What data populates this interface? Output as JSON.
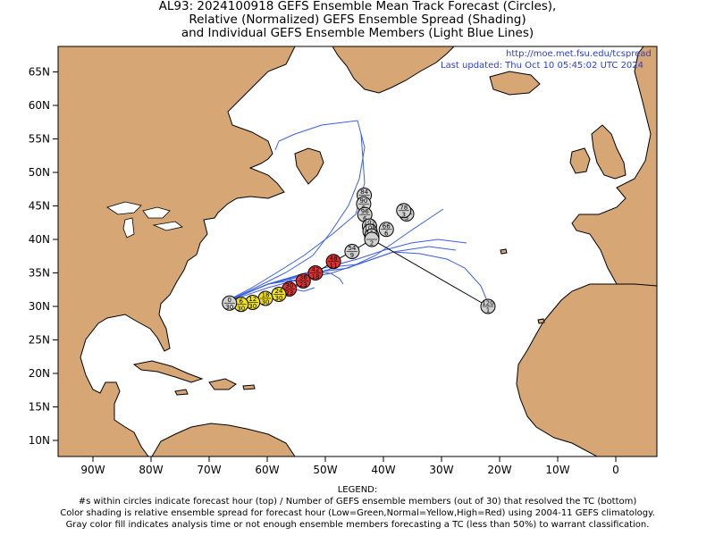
{
  "title": {
    "line1": "AL93: 2024100918 GEFS Ensemble Mean Track Forecast (Circles),",
    "line2": "Relative (Normalized) GEFS Ensemble Spread (Shading)",
    "line3": "and Individual GEFS Ensemble Members (Light Blue Lines)"
  },
  "source_url": "http://moe.met.fsu.edu/tcspread",
  "last_updated": "Last updated: Thu Oct 10 05:45:02 UTC 2024",
  "lat_labels": [
    "65N",
    "60N",
    "55N",
    "50N",
    "45N",
    "40N",
    "35N",
    "30N",
    "25N",
    "20N",
    "15N",
    "10N"
  ],
  "lon_labels": [
    "90W",
    "80W",
    "70W",
    "60W",
    "50W",
    "40W",
    "30W",
    "20W",
    "10W",
    "0"
  ],
  "legend": {
    "heading": "LEGEND:",
    "line1": "#s within circles indicate forecast hour (top) / Number of GEFS ensemble members (out of 30) that resolved the TC (bottom)",
    "line2": "Color shading is relative ensemble spread for forecast hour (Low=Green,Normal=Yellow,High=Red) using 2004-11 GEFS climatology.",
    "line3": "Gray color fill indicates analysis time or not enough ensemble members forecasting a TC (less than 50%) to warrant classification."
  },
  "colors": {
    "land": "#d6a674",
    "ocean": "#ffffff",
    "member_lines": "#3a5fe0",
    "mean_track": "#000000",
    "gray": "#d0d0d0",
    "yellow": "#f0e020",
    "red": "#e03030"
  },
  "track": [
    {
      "hour": "0",
      "members": "30",
      "lon": -66.5,
      "lat": 30.5,
      "fill": "gray"
    },
    {
      "hour": "6",
      "members": "30",
      "lon": -64.5,
      "lat": 30.3,
      "fill": "yellow"
    },
    {
      "hour": "12",
      "members": "30",
      "lon": -62.5,
      "lat": 30.6,
      "fill": "yellow"
    },
    {
      "hour": "18",
      "members": "30",
      "lon": -60.3,
      "lat": 31.2,
      "fill": "yellow"
    },
    {
      "hour": "24",
      "members": "30",
      "lon": -58.0,
      "lat": 31.8,
      "fill": "yellow"
    },
    {
      "hour": "30",
      "members": "23",
      "lon": -56.2,
      "lat": 32.6,
      "fill": "red"
    },
    {
      "hour": "36",
      "members": "23",
      "lon": -53.8,
      "lat": 33.8,
      "fill": "red"
    },
    {
      "hour": "42",
      "members": "18",
      "lon": -51.7,
      "lat": 35.0,
      "fill": "red"
    },
    {
      "hour": "48",
      "members": "11",
      "lon": -48.6,
      "lat": 36.7,
      "fill": "red"
    },
    {
      "hour": "54",
      "members": "9",
      "lon": -45.4,
      "lat": 38.2,
      "fill": "gray"
    },
    {
      "hour": "120",
      "members": "1",
      "lon": -22.0,
      "lat": 30.0,
      "fill": "gray"
    },
    {
      "hour": "",
      "members": "2",
      "lon": -42.0,
      "lat": 40.0,
      "fill": "gray"
    },
    {
      "hour": "114",
      "members": "2",
      "lon": -42.0,
      "lat": 40.5,
      "fill": "gray"
    },
    {
      "hour": "108",
      "members": "6",
      "lon": -42.3,
      "lat": 41.2,
      "fill": "gray"
    },
    {
      "hour": "66",
      "members": "6",
      "lon": -39.5,
      "lat": 41.5,
      "fill": "gray"
    },
    {
      "hour": "102",
      "members": "6",
      "lon": -42.4,
      "lat": 42.0,
      "fill": "gray"
    },
    {
      "hour": "96",
      "members": "6",
      "lon": -43.2,
      "lat": 43.7,
      "fill": "gray"
    },
    {
      "hour": "78",
      "members": "3",
      "lon": -36.5,
      "lat": 44.3,
      "fill": "gray"
    },
    {
      "hour": "",
      "members": "3",
      "lon": -36.0,
      "lat": 43.8,
      "fill": "gray"
    },
    {
      "hour": "90",
      "members": "6",
      "lon": -43.4,
      "lat": 45.3,
      "fill": "gray"
    },
    {
      "hour": "84",
      "members": "5",
      "lon": -43.3,
      "lat": 46.6,
      "fill": "gray"
    }
  ]
}
